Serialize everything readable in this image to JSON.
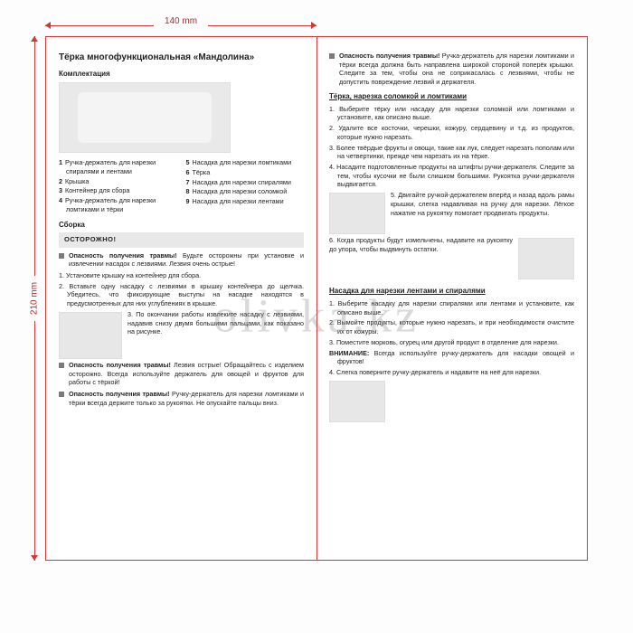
{
  "dims": {
    "width": "140 mm",
    "height": "210 mm"
  },
  "watermark": "olivka.kz",
  "left": {
    "title": "Тёрка многофункциональная «Мандолина»",
    "sect_components": "Комплектация",
    "legend": [
      {
        "n": "1",
        "t": "Ручка-держатель для нарезки спиралями и лентами"
      },
      {
        "n": "2",
        "t": "Крышка"
      },
      {
        "n": "3",
        "t": "Контейнер для сбора"
      },
      {
        "n": "4",
        "t": "Ручка-держатель для нарезки ломтиками и тёрки"
      },
      {
        "n": "5",
        "t": "Насадка для нарезки ломтиками"
      },
      {
        "n": "6",
        "t": "Тёрка"
      },
      {
        "n": "7",
        "t": "Насадка для нарезки спиралями"
      },
      {
        "n": "8",
        "t": "Насадка для нарезки соломкой"
      },
      {
        "n": "9",
        "t": "Насадка для нарезки лентами"
      }
    ],
    "sect_assembly": "Сборка",
    "warn_label": "ОСТОРОЖНО!",
    "warn1_lead": "Опасность получения травмы!",
    "warn1_body": "Будьте осторожны при установке и извлечении насадок с лезвиями. Лезвия очень острые!",
    "steps_a": [
      "1. Установите крышку на контейнер для сбора.",
      "2. Вставьте одну насадку с лезвиями в крышку контейнера до щелчка. Убедитесь, что фиксирующие выступы на насадке находятся в предусмотренных для них углублениях в крышке."
    ],
    "step3": "3. По окончании работы извлеките насадку с лезвиями, надавив снизу двумя большими пальцами, как показано на рисунке.",
    "warn2_lead": "Опасность получения травмы!",
    "warn2_body": "Лезвия острые! Обращайтесь с изделием осторожно. Всегда используйте держатель для овощей и фруктов для работы с тёркой!",
    "warn3_lead": "Опасность получения травмы!",
    "warn3_body": "Ручку-держатель для нарезки ломтиками и тёрки всегда держите только за рукоятки. Не опускайте пальцы вниз."
  },
  "right": {
    "warn1_lead": "Опасность получения травмы!",
    "warn1_body": "Ручка-держатель для нарезки ломтиками и тёрки всегда должна быть направлена широкой стороной поперёк крышки. Следите за тем, чтобы она не соприкасалась с лезвиями, чтобы не допустить повреждение лезвий и держателя.",
    "sect_grater": "Тёрка, нарезка соломкой и ломтиками",
    "g_steps": [
      "1. Выберите тёрку или насадку для нарезки соломкой или ломтиками и установите, как описано выше.",
      "2. Удалите все косточки, черешки, кожуру, сердцевину и т.д. из продуктов, которые нужно нарезать.",
      "3. Более твёрдые фрукты и овощи, такие как лук, следует нарезать пополам или на четвертинки, прежде чем нарезать их на тёрке.",
      "4. Насадите подготовленные продукты на штифты ручки-держателя. Следите за тем, чтобы кусочки не были слишком большими. Рукоятка ручки-держателя выдвигается."
    ],
    "step5": "5. Двигайте ручкой-держателем вперёд и назад вдоль рамы крышки, слегка надавливая на ручку для нарезки. Лёгкое нажатие на рукоятку помогает продвигать продукты.",
    "step6": "6. Когда продукты будут измельчены, надавите на рукоятку до упора, чтобы выдвинуть остатки.",
    "sect_spiral": "Насадка для нарезки лентами и спиралями",
    "s_steps": [
      "1. Выберите насадку для нарезки спиралями или лентами и установите, как описано выше.",
      "2. Вымойте продукты, которые нужно нарезать, и при необходимости очистите их от кожуры.",
      "3. Поместите морковь, огурец или другой продукт в отделение для нарезки."
    ],
    "attn_lead": "ВНИМАНИЕ:",
    "attn_body": "Всегда используйте ручку-держатель для насадки овощей и фруктов!",
    "s_step4": "4. Слегка поверните ручку-держатель и надавите на неё для нарезки."
  }
}
